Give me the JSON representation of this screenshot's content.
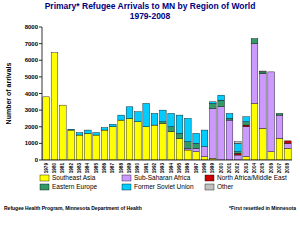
{
  "chart_data": {
    "type": "bar",
    "stacked": true,
    "title": "Primary* Refugee Arrivals to MN by Region of World",
    "subtitle": "1979-2008",
    "y_label": "Number of arrivals",
    "annotations": [
      "Refugee Health Program, Minnesota Department of Health",
      "*First resettled in Minnesota"
    ],
    "categories": [
      "1979",
      "1980",
      "1981",
      "1982",
      "1983",
      "1984",
      "1985",
      "1986",
      "1987",
      "1988",
      "1989",
      "1990",
      "1991",
      "1992",
      "1993",
      "1994",
      "1995",
      "1996",
      "1997",
      "1998",
      "1999",
      "2000",
      "2001",
      "2002",
      "2003",
      "2004",
      "2005",
      "2006",
      "2007",
      "2008"
    ],
    "series": [
      {
        "name": "Southeast Asia",
        "color": "#ffff00",
        "values": [
          3800,
          6450,
          3300,
          1800,
          1500,
          1600,
          1500,
          1800,
          2000,
          2400,
          2500,
          2300,
          2000,
          2100,
          2200,
          1700,
          1300,
          600,
          500,
          200,
          100,
          0,
          0,
          0,
          200,
          3400,
          1900,
          500,
          1300,
          700
        ]
      },
      {
        "name": "Sub-Saharan Africa",
        "color": "#cc99ff",
        "values": [
          0,
          0,
          0,
          0,
          0,
          0,
          0,
          0,
          0,
          0,
          0,
          0,
          0,
          0,
          0,
          0,
          0,
          100,
          200,
          600,
          3000,
          3200,
          2400,
          300,
          1800,
          3600,
          3300,
          4800,
          1400,
          300
        ]
      },
      {
        "name": "North Africa/Middle East",
        "color": "#cc0000",
        "values": [
          0,
          0,
          0,
          0,
          0,
          0,
          0,
          0,
          0,
          0,
          0,
          0,
          0,
          0,
          0,
          0,
          0,
          0,
          0,
          0,
          0,
          0,
          0,
          100,
          100,
          0,
          0,
          0,
          0,
          150
        ]
      },
      {
        "name": "Eastern Europe",
        "color": "#339966",
        "values": [
          0,
          0,
          0,
          0,
          0,
          0,
          0,
          0,
          0,
          0,
          0,
          0,
          0,
          0,
          100,
          300,
          300,
          400,
          300,
          0,
          300,
          400,
          100,
          100,
          200,
          300,
          100,
          0,
          100,
          0
        ]
      },
      {
        "name": "Former Soviet Union",
        "color": "#00ccff",
        "values": [
          0,
          0,
          0,
          50,
          150,
          200,
          150,
          150,
          150,
          300,
          700,
          600,
          1400,
          700,
          700,
          800,
          1100,
          1400,
          600,
          1000,
          100,
          300,
          300,
          500,
          300,
          0,
          0,
          0,
          0,
          0
        ]
      },
      {
        "name": "Other",
        "color": "#c0c0c0",
        "values": [
          0,
          0,
          0,
          0,
          0,
          0,
          0,
          0,
          0,
          0,
          0,
          0,
          0,
          0,
          0,
          0,
          0,
          0,
          0,
          0,
          0,
          0,
          0,
          100,
          0,
          0,
          50,
          0,
          0,
          0
        ]
      }
    ],
    "ylim": [
      0,
      8000
    ],
    "yticks": [
      0,
      1000,
      2000,
      3000,
      4000,
      5000,
      6000,
      7000,
      8000
    ],
    "grid": false,
    "legend": "bottom"
  }
}
